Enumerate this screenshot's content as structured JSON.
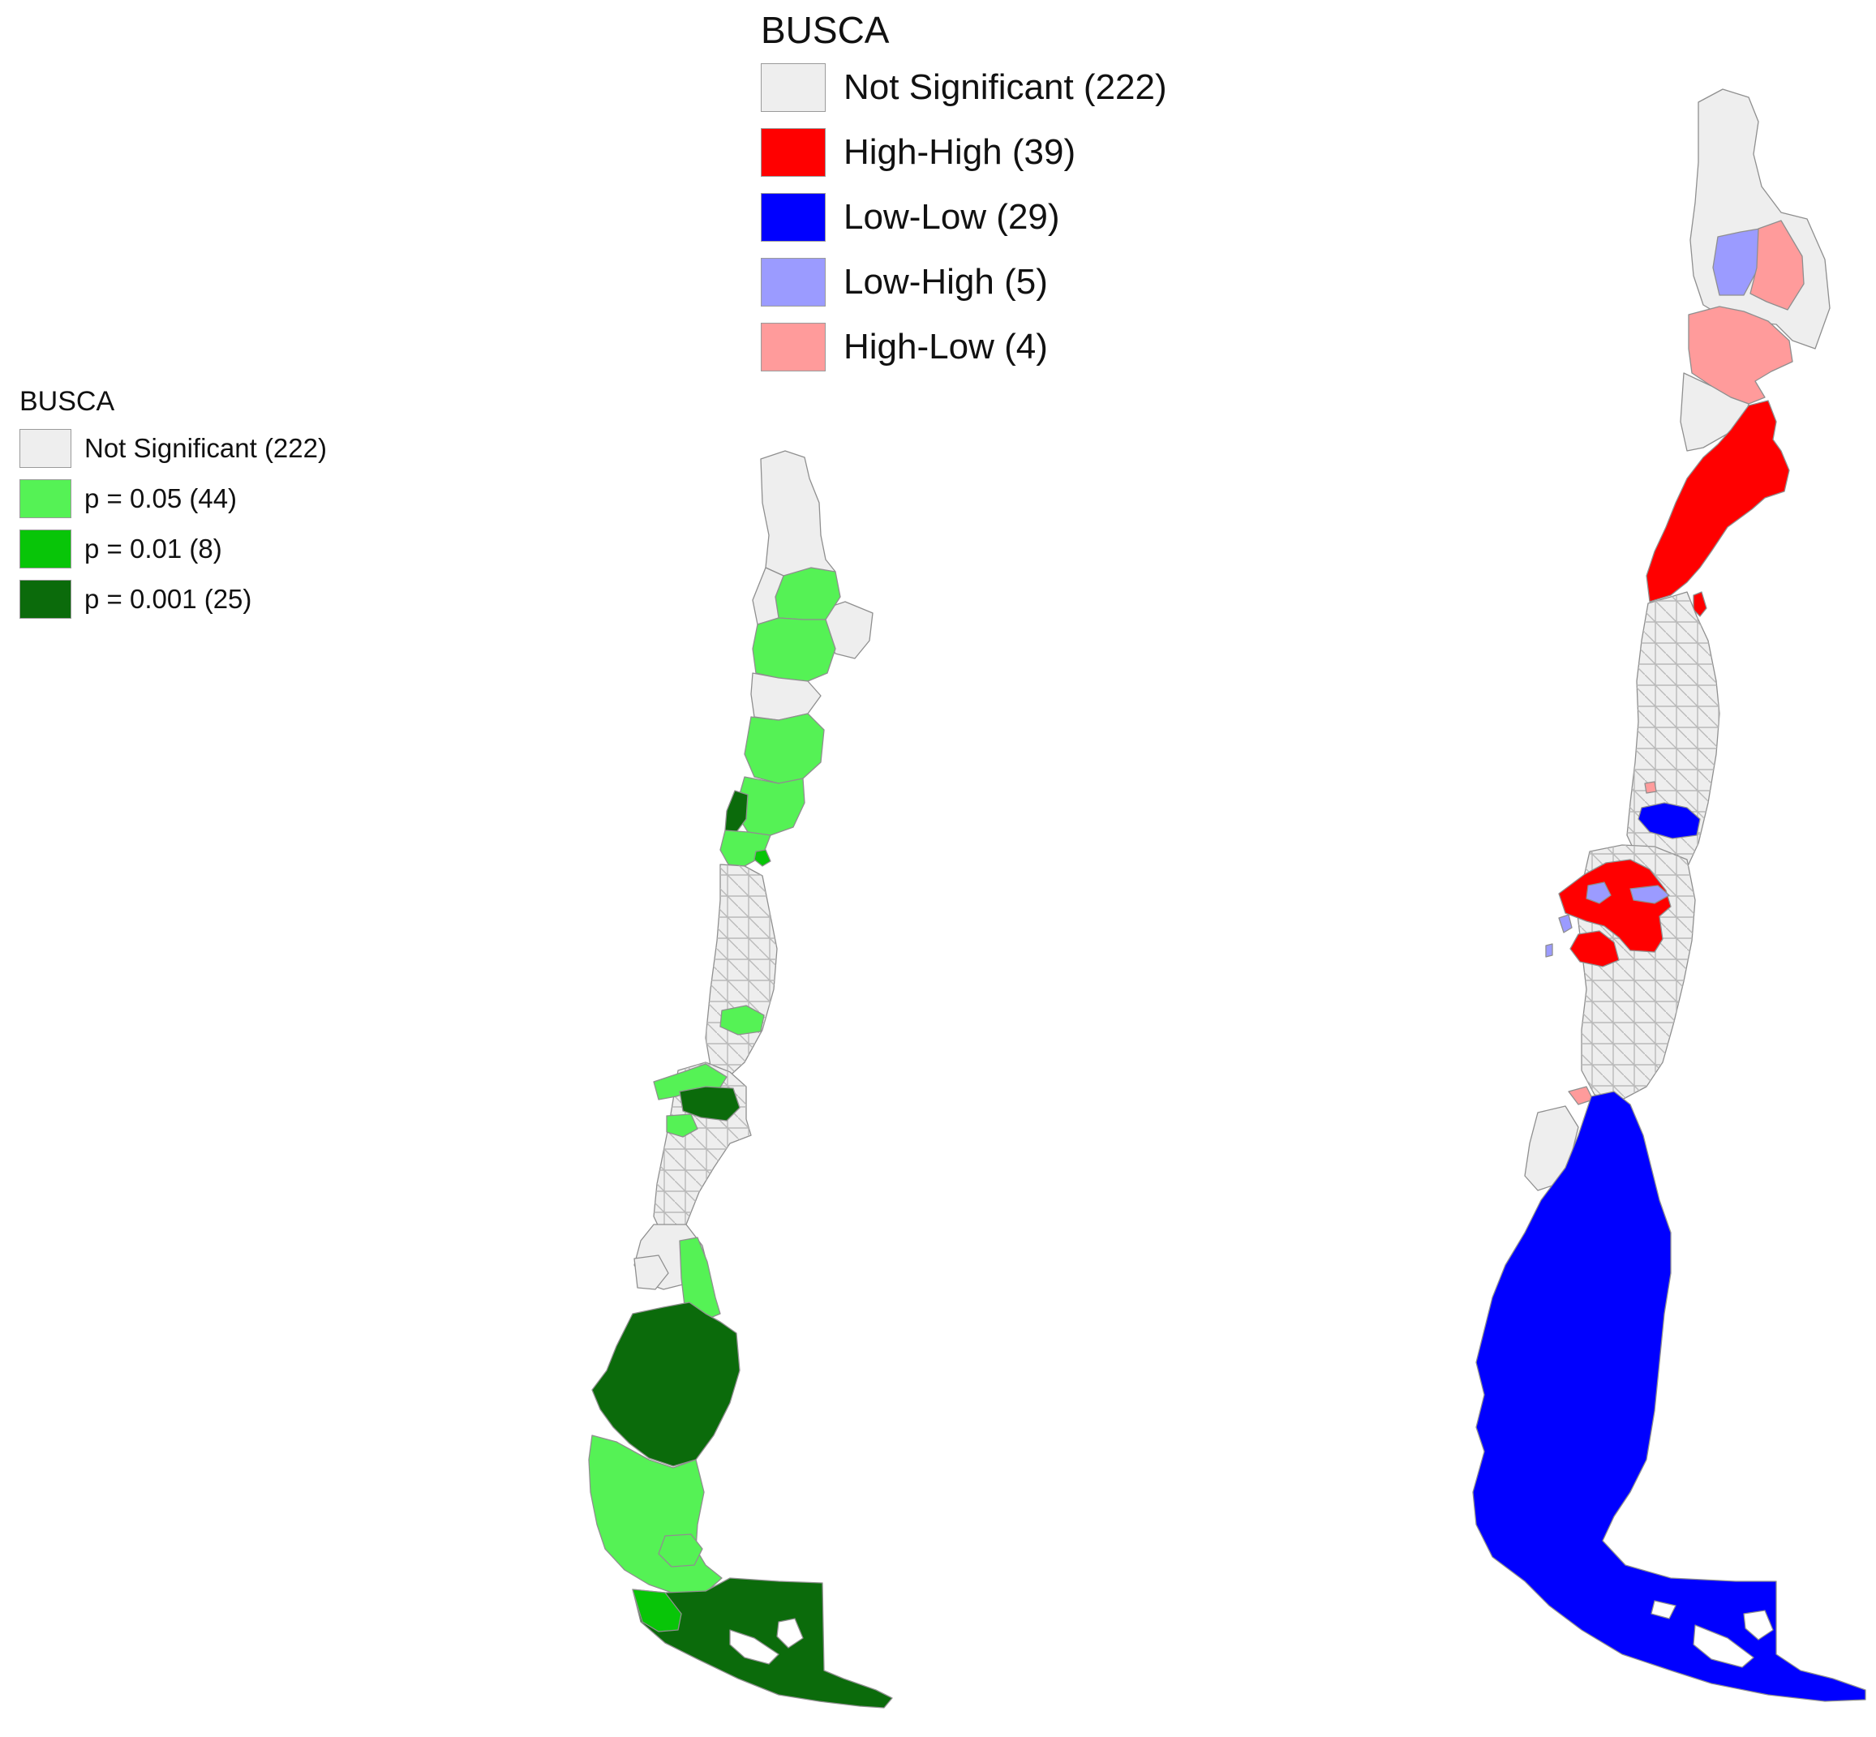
{
  "legend_left": {
    "title": "BUSCA",
    "items": [
      {
        "label": "Not Significant (222)",
        "color": "#eeeeee"
      },
      {
        "label": "p = 0.05 (44)",
        "color": "#55f255"
      },
      {
        "label": "p = 0.01 (8)",
        "color": "#08c508"
      },
      {
        "label": "p = 0.001 (25)",
        "color": "#0b6b0b"
      }
    ]
  },
  "legend_top": {
    "title": "BUSCA",
    "items": [
      {
        "label": "Not Significant (222)",
        "color": "#eeeeee"
      },
      {
        "label": "High-High (39)",
        "color": "#ff0000"
      },
      {
        "label": "Low-Low (29)",
        "color": "#0000ff"
      },
      {
        "label": "Low-High (5)",
        "color": "#9b9bff"
      },
      {
        "label": "High-Low (4)",
        "color": "#ff9b9b"
      }
    ]
  },
  "maps": [
    {
      "name": "significance-map"
    },
    {
      "name": "cluster-map"
    }
  ]
}
